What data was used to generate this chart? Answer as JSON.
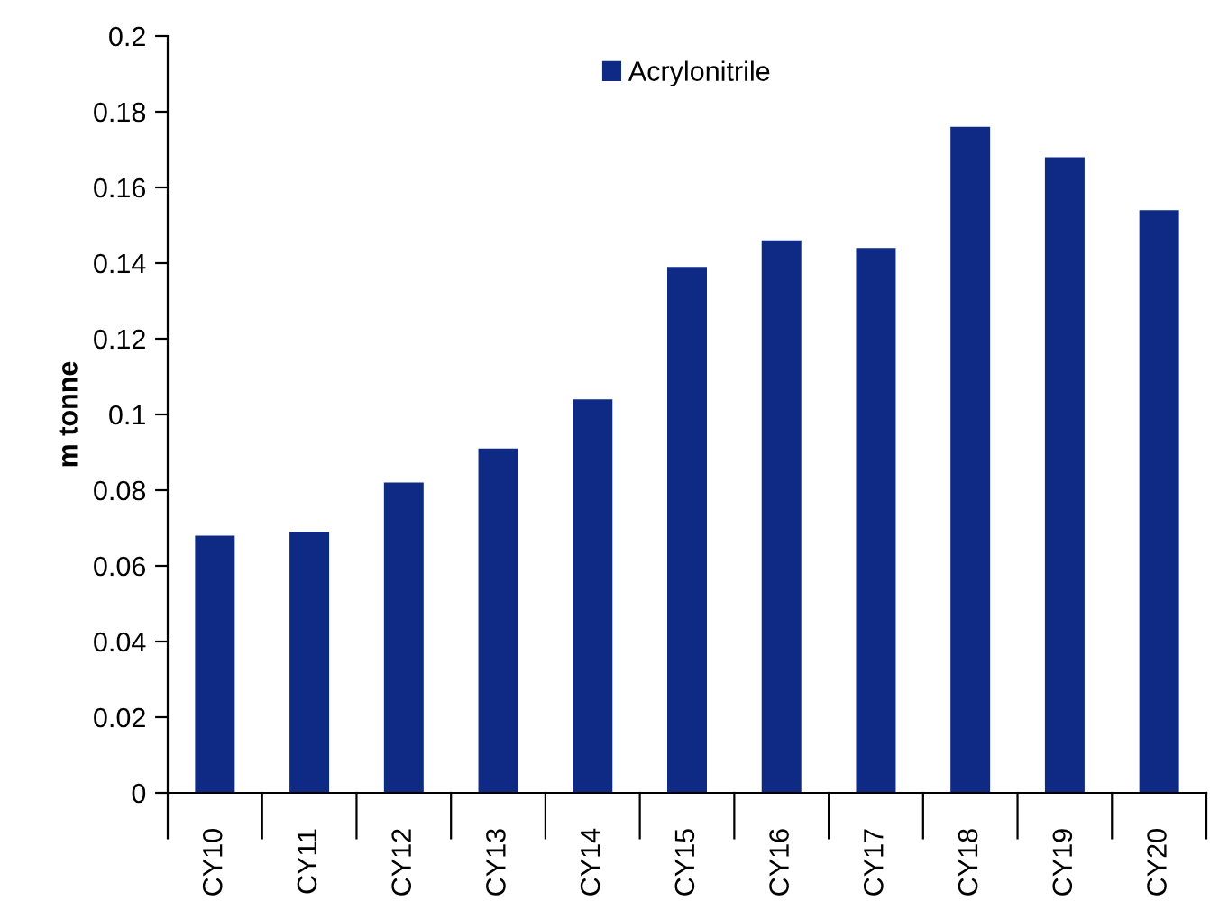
{
  "chart_data": {
    "type": "bar",
    "ylabel": "m tonne",
    "categories": [
      "CY10",
      "CY11",
      "CY12",
      "CY13",
      "CY14",
      "CY15",
      "CY16",
      "CY17",
      "CY18",
      "CY19",
      "CY20"
    ],
    "series": [
      {
        "name": "Acrylonitrile",
        "color": "#0f2a84",
        "values": [
          0.068,
          0.069,
          0.082,
          0.091,
          0.104,
          0.139,
          0.146,
          0.144,
          0.176,
          0.168,
          0.154
        ]
      }
    ],
    "ylim": [
      0,
      0.2
    ],
    "yticks": [
      0,
      0.02,
      0.04,
      0.06,
      0.08,
      {
        "value": 0.1,
        "label": "0.1"
      },
      0.12,
      0.14,
      0.16,
      0.18,
      {
        "value": 0.2,
        "label": "0.2"
      }
    ],
    "grid": false,
    "legend": "top"
  }
}
